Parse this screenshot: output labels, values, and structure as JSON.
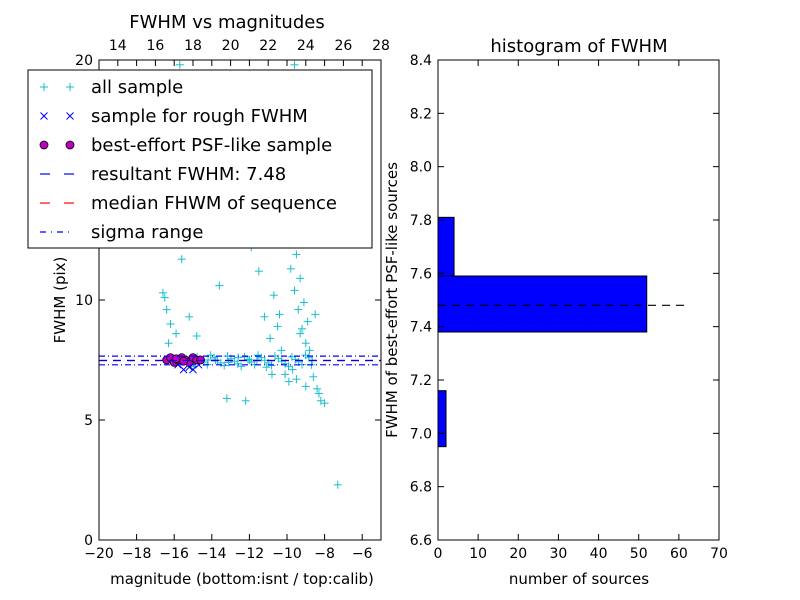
{
  "chart_data": [
    {
      "type": "scatter",
      "title": "FWHM vs magnitudes",
      "xlabel": "magnitude (bottom:isnt / top:calib)",
      "ylabel": "FWHM (pix)",
      "xlim": [
        -20,
        -5
      ],
      "ylim": [
        0,
        20
      ],
      "top_xlim": [
        13,
        28
      ],
      "x_ticks": [
        -20,
        -18,
        -16,
        -14,
        -12,
        -10,
        -8,
        -6
      ],
      "x_tick_labels": [
        "−20",
        "−18",
        "−16",
        "−14",
        "−12",
        "−10",
        "−8",
        "−6"
      ],
      "top_ticks": [
        14,
        16,
        18,
        20,
        22,
        24,
        26,
        28
      ],
      "top_tick_labels": [
        "14",
        "16",
        "18",
        "20",
        "22",
        "24",
        "26",
        "28"
      ],
      "y_ticks": [
        0,
        5,
        10,
        20
      ],
      "y_tick_labels": [
        "0",
        "5",
        "10",
        "20"
      ],
      "legend_position": "upper-left",
      "legend": [
        {
          "label": "all sample",
          "marker": "plus",
          "color": "#17becf"
        },
        {
          "label": "sample for rough FWHM",
          "marker": "x",
          "color": "#0000ff"
        },
        {
          "label": "best-effort PSF-like sample",
          "marker": "circle",
          "color": "#bf00bf"
        },
        {
          "label": "resultant FWHM: 7.48",
          "marker": "dashed",
          "color": "#0000ff"
        },
        {
          "label": "median FHWM of sequence",
          "marker": "dashed",
          "color": "#ff0000"
        },
        {
          "label": "sigma range",
          "marker": "dashdot",
          "color": "#0000ff"
        }
      ],
      "hlines": {
        "resultant_fwhm": 7.48,
        "median_fwhm": 7.48,
        "sigma_low": 7.3,
        "sigma_high": 7.66
      },
      "series": [
        {
          "name": "all sample",
          "points": [
            [
              -16.6,
              10.3
            ],
            [
              -16.5,
              10.1
            ],
            [
              -16.4,
              9.6
            ],
            [
              -16.2,
              9.0
            ],
            [
              -15.9,
              8.6
            ],
            [
              -16.3,
              8.2
            ],
            [
              -15.6,
              11.7
            ],
            [
              -15.2,
              9.3
            ],
            [
              -14.8,
              8.5
            ],
            [
              -13.6,
              10.6
            ],
            [
              -13.2,
              5.9
            ],
            [
              -12.2,
              5.8
            ],
            [
              -12.5,
              13.5
            ],
            [
              -12.2,
              12.8
            ],
            [
              -11.9,
              12.2
            ],
            [
              -11.5,
              11.2
            ],
            [
              -11.2,
              9.3
            ],
            [
              -10.9,
              8.4
            ],
            [
              -11.6,
              7.5
            ],
            [
              -12.0,
              7.5
            ],
            [
              -12.6,
              7.6
            ],
            [
              -13.1,
              7.4
            ],
            [
              -13.8,
              7.5
            ],
            [
              -14.2,
              7.5
            ],
            [
              -10.2,
              13.8
            ],
            [
              -10.0,
              12.4
            ],
            [
              -9.8,
              11.3
            ],
            [
              -9.6,
              10.4
            ],
            [
              -9.4,
              9.6
            ],
            [
              -9.2,
              8.8
            ],
            [
              -9.0,
              8.2
            ],
            [
              -8.8,
              7.9
            ],
            [
              -8.6,
              6.8
            ],
            [
              -8.4,
              6.3
            ],
            [
              -8.2,
              5.8
            ],
            [
              -8.0,
              5.7
            ],
            [
              -9.9,
              13.2
            ],
            [
              -9.7,
              12.6
            ],
            [
              -9.5,
              11.9
            ],
            [
              -9.3,
              10.9
            ],
            [
              -9.1,
              9.9
            ],
            [
              -8.9,
              9.1
            ],
            [
              -10.5,
              8.9
            ],
            [
              -10.3,
              7.9
            ],
            [
              -10.1,
              6.9
            ],
            [
              -9.9,
              6.6
            ],
            [
              -9.7,
              7.1
            ],
            [
              -9.5,
              6.7
            ],
            [
              -10.7,
              10.2
            ],
            [
              -10.4,
              9.4
            ],
            [
              -10.8,
              6.9
            ],
            [
              -11.1,
              7.2
            ],
            [
              -9.6,
              19.8
            ],
            [
              -9.3,
              8.6
            ],
            [
              -9.0,
              6.4
            ],
            [
              -8.7,
              7.3
            ],
            [
              -8.5,
              9.4
            ],
            [
              -8.3,
              6.1
            ],
            [
              -7.3,
              2.3
            ],
            [
              -15.7,
              19.8
            ]
          ]
        },
        {
          "name": "sample for rough FWHM",
          "points": [
            [
              -15.8,
              7.3
            ],
            [
              -15.5,
              7.1
            ],
            [
              -15.2,
              7.2
            ],
            [
              -15.0,
              7.1
            ],
            [
              -14.7,
              7.3
            ],
            [
              -15.9,
              7.4
            ]
          ]
        },
        {
          "name": "best-effort PSF-like sample",
          "points": [
            [
              -16.4,
              7.5
            ],
            [
              -16.2,
              7.6
            ],
            [
              -16.0,
              7.4
            ],
            [
              -15.8,
              7.5
            ],
            [
              -15.6,
              7.6
            ],
            [
              -15.4,
              7.5
            ],
            [
              -15.2,
              7.4
            ],
            [
              -15.0,
              7.6
            ],
            [
              -14.8,
              7.5
            ],
            [
              -14.6,
              7.5
            ],
            [
              -15.5,
              7.45
            ],
            [
              -15.9,
              7.55
            ]
          ]
        }
      ]
    },
    {
      "type": "bar",
      "orientation": "horizontal",
      "title": "histogram of FWHM",
      "xlabel": "number of sources",
      "ylabel": "FWHM of best-effort PSF-like sources",
      "xlim": [
        0,
        70
      ],
      "ylim": [
        6.6,
        8.4
      ],
      "x_ticks": [
        0,
        10,
        20,
        30,
        40,
        50,
        60,
        70
      ],
      "x_tick_labels": [
        "0",
        "10",
        "20",
        "30",
        "40",
        "50",
        "60",
        "70"
      ],
      "y_ticks": [
        6.6,
        6.8,
        7.0,
        7.2,
        7.4,
        7.6,
        7.8,
        8.0,
        8.2,
        8.4
      ],
      "y_tick_labels": [
        "6.6",
        "6.8",
        "7.0",
        "7.2",
        "7.4",
        "7.6",
        "7.8",
        "8.0",
        "8.2",
        "8.4"
      ],
      "bins": [
        {
          "low": 6.95,
          "high": 7.16,
          "count": 2
        },
        {
          "low": 7.38,
          "high": 7.59,
          "count": 52
        },
        {
          "low": 7.59,
          "high": 7.81,
          "count": 4
        }
      ],
      "dashed_line": {
        "value": 7.48,
        "x_extent": 62
      }
    }
  ]
}
